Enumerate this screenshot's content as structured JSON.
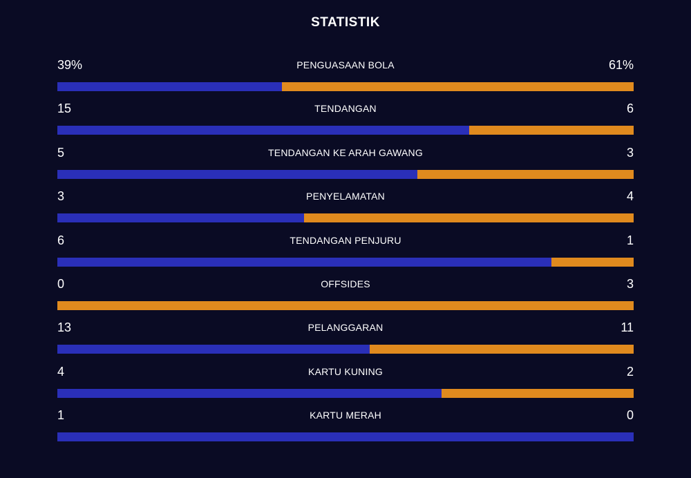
{
  "title": "STATISTIK",
  "colors": {
    "background": "#0a0b24",
    "home": "#2a2fb8",
    "away": "#e08a1e",
    "text": "#ffffff"
  },
  "stats": [
    {
      "label": "PENGUASAAN BOLA",
      "home": "39%",
      "away": "61%",
      "home_value": 39,
      "away_value": 61
    },
    {
      "label": "TENDANGAN",
      "home": "15",
      "away": "6",
      "home_value": 15,
      "away_value": 6
    },
    {
      "label": "TENDANGAN KE ARAH GAWANG",
      "home": "5",
      "away": "3",
      "home_value": 5,
      "away_value": 3
    },
    {
      "label": "PENYELAMATAN",
      "home": "3",
      "away": "4",
      "home_value": 3,
      "away_value": 4
    },
    {
      "label": "TENDANGAN PENJURU",
      "home": "6",
      "away": "1",
      "home_value": 6,
      "away_value": 1
    },
    {
      "label": "OFFSIDES",
      "home": "0",
      "away": "3",
      "home_value": 0,
      "away_value": 3
    },
    {
      "label": "PELANGGARAN",
      "home": "13",
      "away": "11",
      "home_value": 13,
      "away_value": 11
    },
    {
      "label": "KARTU KUNING",
      "home": "4",
      "away": "2",
      "home_value": 4,
      "away_value": 2
    },
    {
      "label": "KARTU MERAH",
      "home": "1",
      "away": "0",
      "home_value": 1,
      "away_value": 0
    }
  ]
}
